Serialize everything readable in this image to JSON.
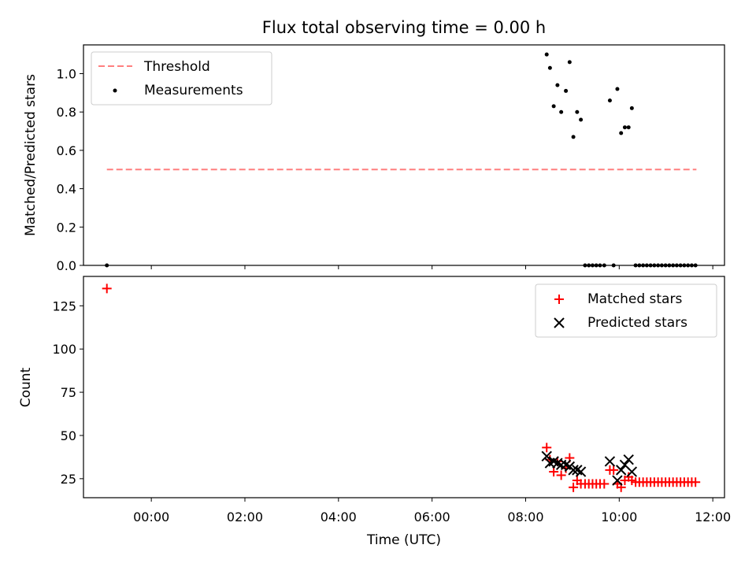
{
  "chart_data": [
    {
      "type": "scatter",
      "title": "Flux total observing time = 0.00 h",
      "ylabel": "Matched/Predicted stars",
      "xlim_hours": [
        -1.45,
        12.25
      ],
      "ylim": [
        0,
        1.15
      ],
      "yticks": [
        "0.0",
        "0.2",
        "0.4",
        "0.6",
        "0.8",
        "1.0"
      ],
      "legend_position": "upper-left",
      "threshold": {
        "name": "Threshold",
        "value": 0.5,
        "x_range": [
          -0.95,
          11.65
        ],
        "color": "#ff7f7f"
      },
      "measurements": {
        "name": "Measurements",
        "color": "#000000",
        "points": [
          [
            -0.95,
            0.0
          ],
          [
            8.45,
            1.1
          ],
          [
            8.52,
            1.03
          ],
          [
            8.6,
            0.83
          ],
          [
            8.68,
            0.94
          ],
          [
            8.76,
            0.8
          ],
          [
            8.86,
            0.91
          ],
          [
            8.94,
            1.06
          ],
          [
            9.02,
            0.67
          ],
          [
            9.1,
            0.8
          ],
          [
            9.18,
            0.76
          ],
          [
            9.27,
            0.0
          ],
          [
            9.35,
            0.0
          ],
          [
            9.43,
            0.0
          ],
          [
            9.51,
            0.0
          ],
          [
            9.59,
            0.0
          ],
          [
            9.68,
            0.0
          ],
          [
            9.8,
            0.86
          ],
          [
            9.88,
            0.0
          ],
          [
            9.96,
            0.92
          ],
          [
            10.04,
            0.69
          ],
          [
            10.12,
            0.72
          ],
          [
            10.2,
            0.72
          ],
          [
            10.27,
            0.82
          ],
          [
            10.35,
            0.0
          ],
          [
            10.43,
            0.0
          ],
          [
            10.51,
            0.0
          ],
          [
            10.59,
            0.0
          ],
          [
            10.67,
            0.0
          ],
          [
            10.75,
            0.0
          ],
          [
            10.83,
            0.0
          ],
          [
            10.91,
            0.0
          ],
          [
            10.99,
            0.0
          ],
          [
            11.07,
            0.0
          ],
          [
            11.15,
            0.0
          ],
          [
            11.23,
            0.0
          ],
          [
            11.31,
            0.0
          ],
          [
            11.39,
            0.0
          ],
          [
            11.47,
            0.0
          ],
          [
            11.55,
            0.0
          ],
          [
            11.63,
            0.0
          ]
        ]
      }
    },
    {
      "type": "scatter",
      "xlabel": "Time (UTC)",
      "ylabel": "Count",
      "xlim_hours": [
        -1.45,
        12.25
      ],
      "ylim": [
        14,
        142
      ],
      "xticks": [
        {
          "hour": 0,
          "label": "00:00"
        },
        {
          "hour": 2,
          "label": "02:00"
        },
        {
          "hour": 4,
          "label": "04:00"
        },
        {
          "hour": 6,
          "label": "06:00"
        },
        {
          "hour": 8,
          "label": "08:00"
        },
        {
          "hour": 10,
          "label": "10:00"
        },
        {
          "hour": 12,
          "label": "12:00"
        }
      ],
      "yticks": [
        "25",
        "50",
        "75",
        "100",
        "125"
      ],
      "legend_position": "upper-right",
      "matched": {
        "name": "Matched stars",
        "color": "#ff0000",
        "points": [
          [
            -0.95,
            135
          ],
          [
            8.45,
            43
          ],
          [
            8.52,
            36
          ],
          [
            8.6,
            29
          ],
          [
            8.68,
            35
          ],
          [
            8.76,
            27
          ],
          [
            8.86,
            31
          ],
          [
            8.94,
            37
          ],
          [
            9.02,
            20
          ],
          [
            9.1,
            24
          ],
          [
            9.18,
            22
          ],
          [
            9.27,
            22
          ],
          [
            9.35,
            22
          ],
          [
            9.43,
            22
          ],
          [
            9.51,
            22
          ],
          [
            9.59,
            22
          ],
          [
            9.68,
            22
          ],
          [
            9.8,
            30
          ],
          [
            9.88,
            30
          ],
          [
            9.96,
            22
          ],
          [
            10.04,
            20
          ],
          [
            10.12,
            24
          ],
          [
            10.2,
            26
          ],
          [
            10.27,
            24
          ],
          [
            10.35,
            23
          ],
          [
            10.43,
            23
          ],
          [
            10.51,
            23
          ],
          [
            10.59,
            23
          ],
          [
            10.67,
            23
          ],
          [
            10.75,
            23
          ],
          [
            10.83,
            23
          ],
          [
            10.91,
            23
          ],
          [
            10.99,
            23
          ],
          [
            11.07,
            23
          ],
          [
            11.15,
            23
          ],
          [
            11.23,
            23
          ],
          [
            11.31,
            23
          ],
          [
            11.39,
            23
          ],
          [
            11.47,
            23
          ],
          [
            11.55,
            23
          ],
          [
            11.63,
            23
          ]
        ]
      },
      "predicted": {
        "name": "Predicted stars",
        "color": "#000000",
        "points": [
          [
            8.45,
            38
          ],
          [
            8.52,
            34
          ],
          [
            8.6,
            35
          ],
          [
            8.68,
            34
          ],
          [
            8.76,
            33
          ],
          [
            8.86,
            33
          ],
          [
            8.94,
            32
          ],
          [
            9.02,
            30
          ],
          [
            9.1,
            30
          ],
          [
            9.18,
            29
          ],
          [
            9.8,
            35
          ],
          [
            9.96,
            24
          ],
          [
            10.04,
            30
          ],
          [
            10.12,
            33
          ],
          [
            10.2,
            36
          ],
          [
            10.27,
            29
          ]
        ]
      }
    }
  ]
}
